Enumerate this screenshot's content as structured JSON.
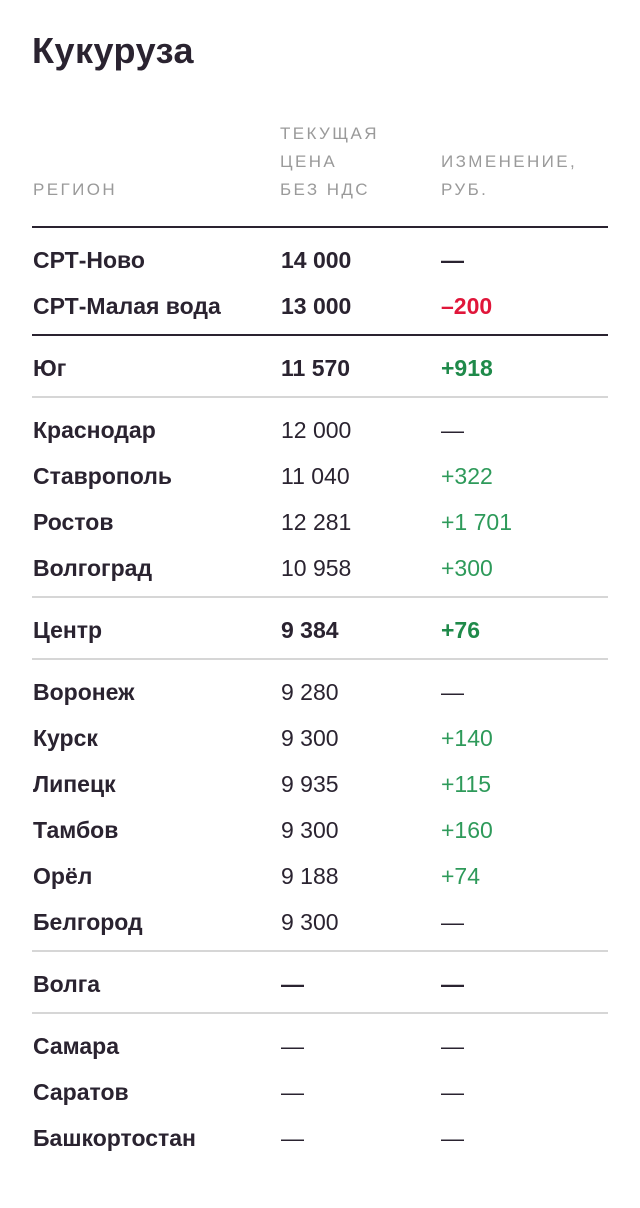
{
  "title": "Кукуруза",
  "headers": {
    "region": "РЕГИОН",
    "price_lines": [
      "ТЕКУЩАЯ",
      "ЦЕНА",
      "БЕЗ НДС"
    ],
    "change_lines": [
      "ИЗМЕНЕНИЕ,",
      "РУБ."
    ]
  },
  "colors": {
    "positive": "#2e9a5a",
    "negative": "#e0163a",
    "text": "#2a2330",
    "header": "#9a9a9a"
  },
  "rows": [
    {
      "region": "СРТ-Ново",
      "price": "14 000",
      "change": "—",
      "strong": true,
      "sign": ""
    },
    {
      "region": "СРТ-Малая вода",
      "price": "13 000",
      "change": "–200",
      "strong": true,
      "sign": "neg"
    },
    {
      "region": "Юг",
      "price": "11 570",
      "change": "+918",
      "strong": true,
      "sign": "pos"
    },
    {
      "region": "Краснодар",
      "price": "12 000",
      "change": "—",
      "strong": false,
      "sign": ""
    },
    {
      "region": "Ставрополь",
      "price": "11 040",
      "change": "+322",
      "strong": false,
      "sign": "pos"
    },
    {
      "region": "Ростов",
      "price": "12 281",
      "change": "+1 701",
      "strong": false,
      "sign": "pos"
    },
    {
      "region": "Волгоград",
      "price": "10 958",
      "change": "+300",
      "strong": false,
      "sign": "pos"
    },
    {
      "region": "Центр",
      "price": "9 384",
      "change": "+76",
      "strong": true,
      "sign": "pos"
    },
    {
      "region": "Воронеж",
      "price": "9 280",
      "change": "—",
      "strong": false,
      "sign": ""
    },
    {
      "region": "Курск",
      "price": "9 300",
      "change": "+140",
      "strong": false,
      "sign": "pos"
    },
    {
      "region": "Липецк",
      "price": "9 935",
      "change": "+115",
      "strong": false,
      "sign": "pos"
    },
    {
      "region": "Тамбов",
      "price": "9 300",
      "change": "+160",
      "strong": false,
      "sign": "pos"
    },
    {
      "region": "Орёл",
      "price": "9 188",
      "change": "+74",
      "strong": false,
      "sign": "pos"
    },
    {
      "region": "Белгород",
      "price": "9 300",
      "change": "—",
      "strong": false,
      "sign": ""
    },
    {
      "region": "Волга",
      "price": "—",
      "change": "—",
      "strong": true,
      "sign": ""
    },
    {
      "region": "Самара",
      "price": "—",
      "change": "—",
      "strong": false,
      "sign": ""
    },
    {
      "region": "Саратов",
      "price": "—",
      "change": "—",
      "strong": false,
      "sign": ""
    },
    {
      "region": "Башкортостан",
      "price": "—",
      "change": "—",
      "strong": false,
      "sign": ""
    }
  ]
}
